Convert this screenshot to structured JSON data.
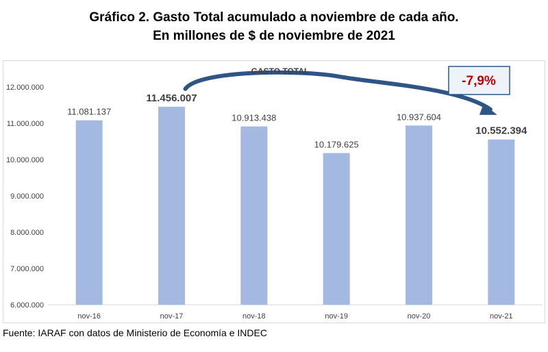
{
  "title_line1": "Gráfico 2. Gasto Total acumulado a noviembre de cada año.",
  "title_line2": "En millones de $ de noviembre de 2021",
  "source": "Fuente: IARAF con datos de Ministerio de Economía e INDEC",
  "chart_data": {
    "type": "bar",
    "categories": [
      "nov-16",
      "nov-17",
      "nov-18",
      "nov-19",
      "nov-20",
      "nov-21"
    ],
    "series": [
      {
        "values": [
          11081137,
          11456007,
          10913438,
          10179625,
          10937604,
          10552394
        ]
      }
    ],
    "data_labels": [
      "11.081.137",
      "11.456.007",
      "10.913.438",
      "10.179.625",
      "10.937.604",
      "10.552.394"
    ],
    "emphasized_labels": [
      "nov-17",
      "nov-21"
    ],
    "yticks": [
      6000000,
      7000000,
      8000000,
      9000000,
      10000000,
      11000000,
      12000000
    ],
    "ytick_labels": [
      "6.000.000",
      "7.000.000",
      "8.000.000",
      "9.000.000",
      "10.000.000",
      "11.000.000",
      "12.000.000"
    ],
    "ylim": [
      6000000,
      12000000
    ],
    "annotation_label": "GASTO TOTAL",
    "change_badge": "-7,9%",
    "bar_color": "#a3b9e1",
    "arrow_color": "#2e5585",
    "badge_text_color": "#c00000",
    "badge_border_color": "#2e5585",
    "badge_fill": "#eef2f9",
    "grid": false
  }
}
